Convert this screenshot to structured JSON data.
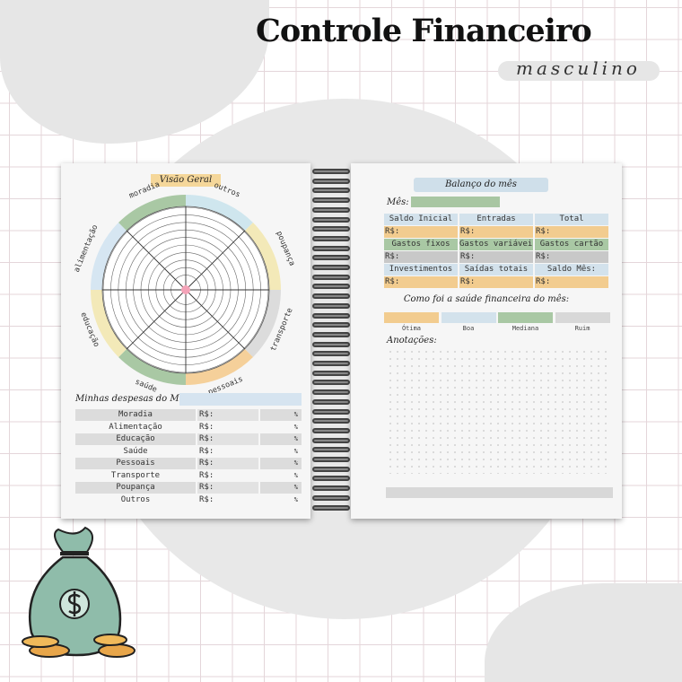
{
  "header": {
    "title": "Controle Financeiro",
    "subtitle": "masculino"
  },
  "left_page": {
    "wheel": {
      "title": "Visão Geral",
      "segments": [
        {
          "label": "outros",
          "color": "#cfe6ee"
        },
        {
          "label": "poupança",
          "color": "#f3e9b8"
        },
        {
          "label": "transporte",
          "color": "#dcdcdc"
        },
        {
          "label": "pessoais",
          "color": "#f5d09a"
        },
        {
          "label": "saúde",
          "color": "#a9c8a4"
        },
        {
          "label": "educação",
          "color": "#f3e9b8"
        },
        {
          "label": "alimentação",
          "color": "#d6e6f2"
        },
        {
          "label": "moradia",
          "color": "#a9c8a4"
        }
      ],
      "center_color": "#f4a3b8"
    },
    "expenses": {
      "label": "Minhas despesas do Mês :",
      "currency": "R$:",
      "percent": "%",
      "rows": [
        "Moradia",
        "Alimentação",
        "Educação",
        "Saúde",
        "Pessoais",
        "Transporte",
        "Poupança",
        "Outros"
      ]
    }
  },
  "right_page": {
    "title": "Balanço do mês",
    "month_label": "Mês:",
    "grid": [
      {
        "headers": [
          "Saldo Inicial",
          "Entradas",
          "Total"
        ],
        "header_color": "#d3e2ec",
        "value_color": "#f2cc8f"
      },
      {
        "headers": [
          "Gastos fixos",
          "Gastos variáveis",
          "Gastos cartão"
        ],
        "header_color": "#a9c8a4",
        "value_color": "#c8c8c8"
      },
      {
        "headers": [
          "Investimentos",
          "Saídas totais",
          "Saldo Mês:"
        ],
        "header_color": "#d3e2ec",
        "value_color": "#f2cc8f"
      }
    ],
    "currency": "R$:",
    "health": {
      "label": "Como foi a saúde financeira do mês:",
      "levels": [
        {
          "label": "Ótima",
          "color": "#f2cc8f"
        },
        {
          "label": "Boa",
          "color": "#d3e2ec"
        },
        {
          "label": "Mediana",
          "color": "#a9c8a4"
        },
        {
          "label": "Ruim",
          "color": "#d8d8d8"
        }
      ]
    },
    "notes_label": "Anotações:"
  }
}
